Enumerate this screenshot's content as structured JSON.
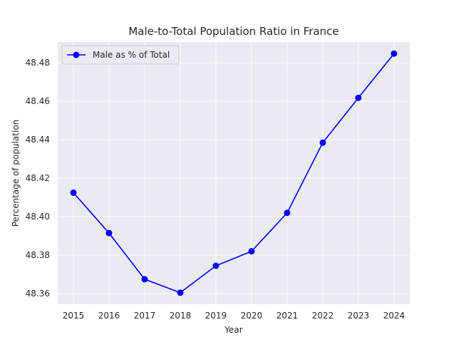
{
  "chart_data": {
    "type": "line",
    "title": "Male-to-Total Population Ratio in France",
    "xlabel": "Year",
    "ylabel": "Percentage of population",
    "x": [
      "2015",
      "2016",
      "2017",
      "2018",
      "2019",
      "2020",
      "2021",
      "2022",
      "2023",
      "2024"
    ],
    "series": [
      {
        "name": "Male as % of Total",
        "color": "#0000ff",
        "marker": "circle",
        "values": [
          48.4125,
          48.3915,
          48.3675,
          48.3605,
          48.3745,
          48.382,
          48.402,
          48.4385,
          48.4618,
          48.4848
        ]
      }
    ],
    "ylim": [
      48.3545,
      48.4908
    ],
    "yticks": [
      "48.36",
      "48.38",
      "48.40",
      "48.42",
      "48.44",
      "48.46",
      "48.48"
    ],
    "ytick_values": [
      48.36,
      48.38,
      48.4,
      48.42,
      48.44,
      48.46,
      48.48
    ],
    "grid": true,
    "legend_position": "top-left",
    "style": {
      "plot_background": "#eaeaf2",
      "grid_color": "#ffffff"
    }
  }
}
